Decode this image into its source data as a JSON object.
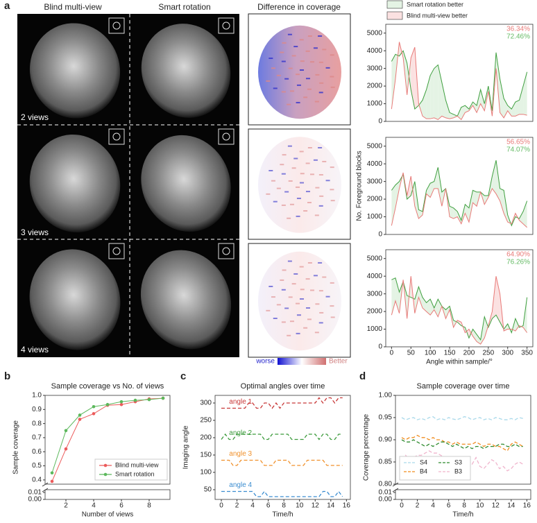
{
  "panel_labels": [
    "a",
    "b",
    "c",
    "d"
  ],
  "images": {
    "column_titles": [
      "Blind multi-view",
      "Smart rotation",
      "Difference in coverage"
    ],
    "view_labels": [
      "2 views",
      "3 views",
      "4 views"
    ],
    "colorbar": {
      "low": "worse",
      "high": "Better"
    }
  },
  "chart_data": [
    {
      "type": "line",
      "xlim": [
        -15,
        365
      ],
      "ylim": [
        0,
        5500
      ],
      "yticks": [
        0,
        1000,
        2000,
        3000,
        4000,
        5000
      ],
      "legend": [
        {
          "label": "Smart rotation better",
          "color": "#e4f3e4"
        },
        {
          "label": "Blind multi-view better",
          "color": "#fbe1e1"
        }
      ],
      "annotations": [
        {
          "text": "36.34%",
          "color": "#e87a78"
        },
        {
          "text": "72.46%",
          "color": "#66bb66"
        }
      ],
      "x": [
        0,
        10,
        20,
        30,
        40,
        50,
        60,
        70,
        80,
        90,
        100,
        110,
        120,
        130,
        140,
        150,
        160,
        170,
        180,
        190,
        200,
        210,
        220,
        230,
        240,
        250,
        260,
        270,
        280,
        290,
        300,
        310,
        320,
        330,
        340,
        350
      ],
      "series": [
        {
          "color": "#3f9f3f",
          "values": [
            3400,
            3800,
            3700,
            4000,
            3300,
            1800,
            700,
            900,
            1200,
            1800,
            2600,
            3000,
            3200,
            2200,
            1200,
            500,
            400,
            300,
            800,
            900,
            700,
            1100,
            900,
            1800,
            1000,
            2000,
            600,
            3900,
            2400,
            1300,
            900,
            700,
            1100,
            1200,
            2000,
            2800
          ]
        },
        {
          "color": "#e87a78",
          "values": [
            700,
            2400,
            4500,
            3600,
            1500,
            3600,
            4200,
            1000,
            300,
            150,
            150,
            200,
            100,
            300,
            200,
            150,
            200,
            300,
            100,
            500,
            600,
            900,
            500,
            1000,
            600,
            1700,
            300,
            3000,
            500,
            200,
            600,
            300,
            300,
            400,
            400,
            350
          ]
        }
      ]
    },
    {
      "type": "line",
      "xlim": [
        -15,
        365
      ],
      "ylim": [
        0,
        5500
      ],
      "yticks": [
        0,
        1000,
        2000,
        3000,
        4000,
        5000
      ],
      "ylabel": "No. Foreground blocks",
      "annotations": [
        {
          "text": "56.65%",
          "color": "#e87a78"
        },
        {
          "text": "74.07%",
          "color": "#66bb66"
        }
      ],
      "x": [
        0,
        10,
        20,
        30,
        40,
        50,
        60,
        70,
        80,
        90,
        100,
        110,
        120,
        130,
        140,
        150,
        160,
        170,
        180,
        190,
        200,
        210,
        220,
        230,
        240,
        250,
        260,
        270,
        280,
        290,
        300,
        310,
        320,
        330,
        340,
        350
      ],
      "series": [
        {
          "color": "#3f9f3f",
          "values": [
            2500,
            2800,
            3000,
            3400,
            2000,
            2200,
            3000,
            1400,
            1300,
            2500,
            2900,
            3000,
            3800,
            2400,
            2600,
            1600,
            1500,
            1300,
            800,
            1700,
            1500,
            2500,
            2400,
            2400,
            2200,
            2200,
            3300,
            4200,
            2600,
            2500,
            1100,
            500,
            1000,
            900,
            1300,
            1900
          ]
        },
        {
          "color": "#e87a78",
          "values": [
            500,
            1500,
            2600,
            3500,
            2200,
            3300,
            1600,
            900,
            1100,
            2300,
            2100,
            2600,
            2600,
            1600,
            2600,
            1000,
            900,
            1000,
            600,
            1200,
            700,
            1800,
            1600,
            2400,
            1700,
            2100,
            2600,
            2300,
            1900,
            1200,
            700,
            600,
            1200,
            800,
            600,
            400
          ]
        }
      ]
    },
    {
      "type": "line",
      "xlim": [
        -15,
        365
      ],
      "ylim": [
        0,
        5500
      ],
      "yticks": [
        0,
        1000,
        2000,
        3000,
        4000,
        5000
      ],
      "xticks": [
        0,
        50,
        100,
        150,
        200,
        250,
        300,
        350
      ],
      "xlabel": "Angle within sample/°",
      "annotations": [
        {
          "text": "64.90%",
          "color": "#e87a78"
        },
        {
          "text": "76.26%",
          "color": "#66bb66"
        }
      ],
      "x": [
        0,
        10,
        20,
        30,
        40,
        50,
        60,
        70,
        80,
        90,
        100,
        110,
        120,
        130,
        140,
        150,
        160,
        170,
        180,
        190,
        200,
        210,
        220,
        230,
        240,
        250,
        260,
        270,
        280,
        290,
        300,
        310,
        320,
        330,
        340,
        350
      ],
      "series": [
        {
          "color": "#3f9f3f",
          "values": [
            3800,
            3900,
            3100,
            3700,
            2900,
            2800,
            2700,
            3400,
            2800,
            2500,
            2700,
            2200,
            2700,
            2300,
            2100,
            2300,
            1500,
            1400,
            1200,
            1100,
            500,
            1000,
            700,
            400,
            1700,
            1100,
            1600,
            1800,
            1400,
            1000,
            1300,
            800,
            1600,
            1100,
            1200,
            2800
          ]
        },
        {
          "color": "#e87a78",
          "values": [
            1800,
            2600,
            1900,
            3800,
            1600,
            4000,
            1900,
            2800,
            2200,
            2000,
            1800,
            2100,
            1700,
            2300,
            1600,
            2100,
            1100,
            1500,
            1400,
            800,
            1000,
            600,
            300,
            150,
            500,
            1200,
            2000,
            4000,
            3000,
            900,
            1000,
            1000,
            900,
            1200,
            1100,
            800
          ]
        }
      ]
    },
    {
      "type": "line",
      "title": "Sample coverage vs No. of views",
      "xlabel": "Number of views",
      "ylabel": "Sample coverage",
      "markers": true,
      "legend_position": "lower right",
      "xlim": [
        0.5,
        9.5
      ],
      "xticks": [
        2,
        4,
        6,
        8
      ],
      "ylim": [
        0.37,
        1.0
      ],
      "yticks": [
        0.4,
        0.5,
        0.6,
        0.7,
        0.8,
        0.9,
        {
          "value": 1,
          "label": "1.0"
        }
      ],
      "lower_ylim": [
        0,
        0.01
      ],
      "lower_yticks": [
        0.01,
        {
          "value": 0,
          "label": "0.00"
        }
      ],
      "x": [
        1,
        2,
        3,
        4,
        5,
        6,
        7,
        8,
        9
      ],
      "series": [
        {
          "name": "Blind multi-view",
          "color": "#ec5b5b",
          "values": [
            0.39,
            0.62,
            0.83,
            0.87,
            0.93,
            0.935,
            0.955,
            0.975,
            0.98
          ]
        },
        {
          "name": "Smart rotation",
          "color": "#5cb85c",
          "values": [
            0.45,
            0.75,
            0.86,
            0.92,
            0.935,
            0.955,
            0.965,
            0.97,
            0.98
          ]
        }
      ]
    },
    {
      "type": "line",
      "title": "Optimal angles over time",
      "xlabel": "Time/h",
      "ylabel": "Imaging angle",
      "dashed": true,
      "series_labels": true,
      "xlim": [
        -0.8,
        16.5
      ],
      "xticks": [
        0,
        2,
        4,
        6,
        8,
        10,
        12,
        14,
        16
      ],
      "ylim": [
        22,
        322
      ],
      "yticks": [
        50,
        100,
        150,
        200,
        250,
        300
      ],
      "x": [
        0,
        0.5,
        1,
        1.5,
        2,
        2.5,
        3,
        3.5,
        4,
        4.5,
        5,
        5.5,
        6,
        6.5,
        7,
        7.5,
        8,
        8.5,
        9,
        9.5,
        10,
        10.5,
        11,
        11.5,
        12,
        12.5,
        13,
        13.5,
        14,
        14.5,
        15,
        15.5
      ],
      "series": [
        {
          "name": "angle 1",
          "color": "#c83737",
          "values": [
            285,
            285,
            285,
            285,
            285,
            285,
            285,
            300,
            300,
            285,
            285,
            300,
            300,
            285,
            300,
            285,
            300,
            300,
            300,
            300,
            300,
            300,
            300,
            300,
            300,
            315,
            300,
            315,
            315,
            300,
            315,
            315
          ]
        },
        {
          "name": "angle 2",
          "color": "#3a9a3a",
          "values": [
            195,
            210,
            195,
            195,
            210,
            210,
            210,
            210,
            210,
            210,
            210,
            195,
            195,
            210,
            210,
            210,
            210,
            210,
            195,
            195,
            195,
            195,
            210,
            210,
            210,
            195,
            210,
            210,
            195,
            195,
            210,
            210
          ]
        },
        {
          "name": "angle 3",
          "color": "#f0902a",
          "values": [
            135,
            135,
            135,
            120,
            120,
            135,
            135,
            135,
            135,
            135,
            135,
            120,
            120,
            120,
            135,
            135,
            135,
            135,
            120,
            120,
            120,
            120,
            135,
            135,
            135,
            135,
            135,
            120,
            120,
            120,
            120,
            120
          ]
        },
        {
          "name": "angle 4",
          "color": "#3a8cd0",
          "values": [
            45,
            45,
            45,
            45,
            45,
            45,
            45,
            45,
            45,
            30,
            30,
            45,
            30,
            30,
            30,
            30,
            30,
            30,
            30,
            30,
            30,
            30,
            30,
            30,
            30,
            30,
            45,
            45,
            30,
            30,
            45,
            30
          ]
        }
      ]
    },
    {
      "type": "line",
      "title": "Sample coverage over time",
      "xlabel": "Time/h",
      "ylabel": "Coverage percentage",
      "dashed": true,
      "legend_position": "lower left",
      "xlim": [
        -0.8,
        16.5
      ],
      "xticks": [
        0,
        2,
        4,
        6,
        8,
        10,
        12,
        14,
        16
      ],
      "ylim": [
        0.8,
        1.0
      ],
      "yticks": [
        {
          "value": 0.8,
          "label": "0.80"
        },
        0.85,
        {
          "value": 0.9,
          "label": "0.90"
        },
        0.95,
        {
          "value": 1,
          "label": "1.00"
        }
      ],
      "lower_ylim": [
        0,
        0.01
      ],
      "lower_yticks": [
        0.01,
        {
          "value": 0,
          "label": "0.00"
        }
      ],
      "x": [
        0,
        0.5,
        1,
        1.5,
        2,
        2.5,
        3,
        3.5,
        4,
        4.5,
        5,
        5.5,
        6,
        6.5,
        7,
        7.5,
        8,
        8.5,
        9,
        9.5,
        10,
        10.5,
        11,
        11.5,
        12,
        12.5,
        13,
        13.5,
        14,
        14.5,
        15,
        15.5
      ],
      "series": [
        {
          "name": "S4",
          "color": "#a9d9ea",
          "values": [
            0.95,
            0.945,
            0.948,
            0.95,
            0.945,
            0.948,
            0.945,
            0.95,
            0.952,
            0.945,
            0.948,
            0.945,
            0.95,
            0.947,
            0.945,
            0.948,
            0.952,
            0.95,
            0.945,
            0.948,
            0.95,
            0.945,
            0.948,
            0.945,
            0.95,
            0.948,
            0.945,
            0.945,
            0.948,
            0.945,
            0.95,
            0.948
          ]
        },
        {
          "name": "B4",
          "color": "#f08c1e",
          "values": [
            0.905,
            0.9,
            0.905,
            0.905,
            0.91,
            0.905,
            0.905,
            0.9,
            0.905,
            0.9,
            0.9,
            0.895,
            0.895,
            0.89,
            0.895,
            0.89,
            0.89,
            0.89,
            0.89,
            0.895,
            0.89,
            0.885,
            0.89,
            0.89,
            0.885,
            0.885,
            0.88,
            0.875,
            0.89,
            0.895,
            0.89,
            0.885
          ]
        },
        {
          "name": "S3",
          "color": "#2e8b2e",
          "values": [
            0.9,
            0.895,
            0.895,
            0.9,
            0.895,
            0.89,
            0.885,
            0.89,
            0.885,
            0.89,
            0.895,
            0.895,
            0.89,
            0.885,
            0.89,
            0.885,
            0.88,
            0.885,
            0.88,
            0.885,
            0.885,
            0.88,
            0.885,
            0.885,
            0.885,
            0.89,
            0.89,
            0.885,
            0.885,
            0.89,
            0.885,
            0.885
          ]
        },
        {
          "name": "B3",
          "color": "#f0b4cc",
          "values": [
            0.855,
            0.865,
            0.855,
            0.86,
            0.865,
            0.865,
            0.87,
            0.875,
            0.87,
            0.87,
            0.865,
            0.86,
            0.86,
            0.855,
            0.86,
            0.855,
            0.85,
            0.855,
            0.845,
            0.86,
            0.84,
            0.835,
            0.845,
            0.855,
            0.85,
            0.835,
            0.84,
            0.83,
            0.835,
            0.845,
            0.85,
            0.845
          ]
        }
      ]
    }
  ]
}
